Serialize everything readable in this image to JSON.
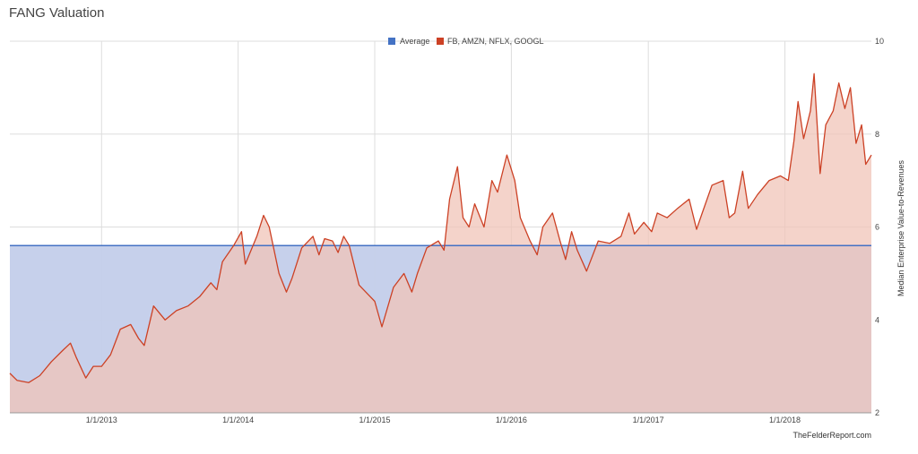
{
  "chart_data": {
    "type": "area",
    "title": "FANG Valuation",
    "ylabel": "Median Enterprise Value-to-Revenues",
    "xlabel": "",
    "ylim": [
      2,
      10
    ],
    "xlim": [
      "2012-05-01",
      "2018-08-20"
    ],
    "yticks": [
      "2",
      "4",
      "6",
      "8",
      "10"
    ],
    "y_axis_side": "right",
    "grid": true,
    "legend_position": "top",
    "xticks": [
      {
        "date": "2013-01-01",
        "label": "1/1/2013"
      },
      {
        "date": "2014-01-01",
        "label": "1/1/2014"
      },
      {
        "date": "2015-01-01",
        "label": "1/1/2015"
      },
      {
        "date": "2016-01-01",
        "label": "1/1/2016"
      },
      {
        "date": "2017-01-01",
        "label": "1/1/2017"
      },
      {
        "date": "2018-01-01",
        "label": "1/1/2018"
      }
    ],
    "series": [
      {
        "name": "Average",
        "color": "#4472c4",
        "fill": "#c3cdea",
        "constant": 5.6
      },
      {
        "name": "FB, AMZN, NFLX, GOOGL",
        "color": "#cc4125",
        "fill": "#f0c4b8",
        "points": [
          [
            "2012-05-01",
            2.85
          ],
          [
            "2012-05-20",
            2.7
          ],
          [
            "2012-06-20",
            2.65
          ],
          [
            "2012-07-20",
            2.8
          ],
          [
            "2012-08-20",
            3.1
          ],
          [
            "2012-09-20",
            3.35
          ],
          [
            "2012-10-10",
            3.5
          ],
          [
            "2012-10-25",
            3.2
          ],
          [
            "2012-11-20",
            2.75
          ],
          [
            "2012-12-10",
            3.0
          ],
          [
            "2013-01-01",
            3.0
          ],
          [
            "2013-01-25",
            3.25
          ],
          [
            "2013-02-20",
            3.8
          ],
          [
            "2013-03-20",
            3.9
          ],
          [
            "2013-04-10",
            3.6
          ],
          [
            "2013-04-25",
            3.45
          ],
          [
            "2013-05-20",
            4.3
          ],
          [
            "2013-06-20",
            4.0
          ],
          [
            "2013-07-20",
            4.2
          ],
          [
            "2013-08-20",
            4.3
          ],
          [
            "2013-09-20",
            4.5
          ],
          [
            "2013-10-20",
            4.8
          ],
          [
            "2013-11-05",
            4.65
          ],
          [
            "2013-11-20",
            5.25
          ],
          [
            "2013-12-20",
            5.6
          ],
          [
            "2014-01-10",
            5.9
          ],
          [
            "2014-01-20",
            5.2
          ],
          [
            "2014-02-20",
            5.8
          ],
          [
            "2014-03-10",
            6.25
          ],
          [
            "2014-03-25",
            6.0
          ],
          [
            "2014-04-20",
            5.0
          ],
          [
            "2014-05-10",
            4.6
          ],
          [
            "2014-05-25",
            4.9
          ],
          [
            "2014-06-20",
            5.55
          ],
          [
            "2014-07-20",
            5.8
          ],
          [
            "2014-08-05",
            5.4
          ],
          [
            "2014-08-20",
            5.75
          ],
          [
            "2014-09-10",
            5.7
          ],
          [
            "2014-09-25",
            5.45
          ],
          [
            "2014-10-10",
            5.8
          ],
          [
            "2014-10-25",
            5.6
          ],
          [
            "2014-11-20",
            4.75
          ],
          [
            "2014-12-20",
            4.5
          ],
          [
            "2015-01-01",
            4.4
          ],
          [
            "2015-01-20",
            3.85
          ],
          [
            "2015-02-20",
            4.7
          ],
          [
            "2015-03-20",
            5.0
          ],
          [
            "2015-04-10",
            4.6
          ],
          [
            "2015-04-25",
            5.0
          ],
          [
            "2015-05-20",
            5.55
          ],
          [
            "2015-06-20",
            5.7
          ],
          [
            "2015-07-05",
            5.5
          ],
          [
            "2015-07-20",
            6.6
          ],
          [
            "2015-08-10",
            7.3
          ],
          [
            "2015-08-25",
            6.2
          ],
          [
            "2015-09-10",
            6.0
          ],
          [
            "2015-09-25",
            6.5
          ],
          [
            "2015-10-20",
            6.0
          ],
          [
            "2015-11-10",
            7.0
          ],
          [
            "2015-11-25",
            6.75
          ],
          [
            "2015-12-20",
            7.55
          ],
          [
            "2016-01-10",
            7.0
          ],
          [
            "2016-01-25",
            6.2
          ],
          [
            "2016-02-20",
            5.7
          ],
          [
            "2016-03-10",
            5.4
          ],
          [
            "2016-03-25",
            6.0
          ],
          [
            "2016-04-20",
            6.3
          ],
          [
            "2016-05-10",
            5.7
          ],
          [
            "2016-05-25",
            5.3
          ],
          [
            "2016-06-10",
            5.9
          ],
          [
            "2016-06-25",
            5.5
          ],
          [
            "2016-07-20",
            5.05
          ],
          [
            "2016-08-20",
            5.7
          ],
          [
            "2016-09-20",
            5.65
          ],
          [
            "2016-10-20",
            5.8
          ],
          [
            "2016-11-10",
            6.3
          ],
          [
            "2016-11-25",
            5.85
          ],
          [
            "2016-12-20",
            6.1
          ],
          [
            "2017-01-10",
            5.9
          ],
          [
            "2017-01-25",
            6.3
          ],
          [
            "2017-02-20",
            6.2
          ],
          [
            "2017-03-20",
            6.4
          ],
          [
            "2017-04-20",
            6.6
          ],
          [
            "2017-05-10",
            5.95
          ],
          [
            "2017-05-25",
            6.3
          ],
          [
            "2017-06-20",
            6.9
          ],
          [
            "2017-07-20",
            7.0
          ],
          [
            "2017-08-05",
            6.2
          ],
          [
            "2017-08-20",
            6.3
          ],
          [
            "2017-09-10",
            7.2
          ],
          [
            "2017-09-25",
            6.4
          ],
          [
            "2017-10-20",
            6.7
          ],
          [
            "2017-11-20",
            7.0
          ],
          [
            "2017-12-20",
            7.1
          ],
          [
            "2018-01-10",
            7.0
          ],
          [
            "2018-01-25",
            7.85
          ],
          [
            "2018-02-05",
            8.7
          ],
          [
            "2018-02-20",
            7.9
          ],
          [
            "2018-03-10",
            8.5
          ],
          [
            "2018-03-20",
            9.3
          ],
          [
            "2018-04-05",
            7.15
          ],
          [
            "2018-04-20",
            8.2
          ],
          [
            "2018-05-10",
            8.5
          ],
          [
            "2018-05-25",
            9.1
          ],
          [
            "2018-06-10",
            8.55
          ],
          [
            "2018-06-25",
            9.0
          ],
          [
            "2018-07-10",
            7.8
          ],
          [
            "2018-07-25",
            8.2
          ],
          [
            "2018-08-05",
            7.35
          ],
          [
            "2018-08-20",
            7.55
          ]
        ]
      }
    ]
  },
  "credit": "TheFelderReport.com"
}
